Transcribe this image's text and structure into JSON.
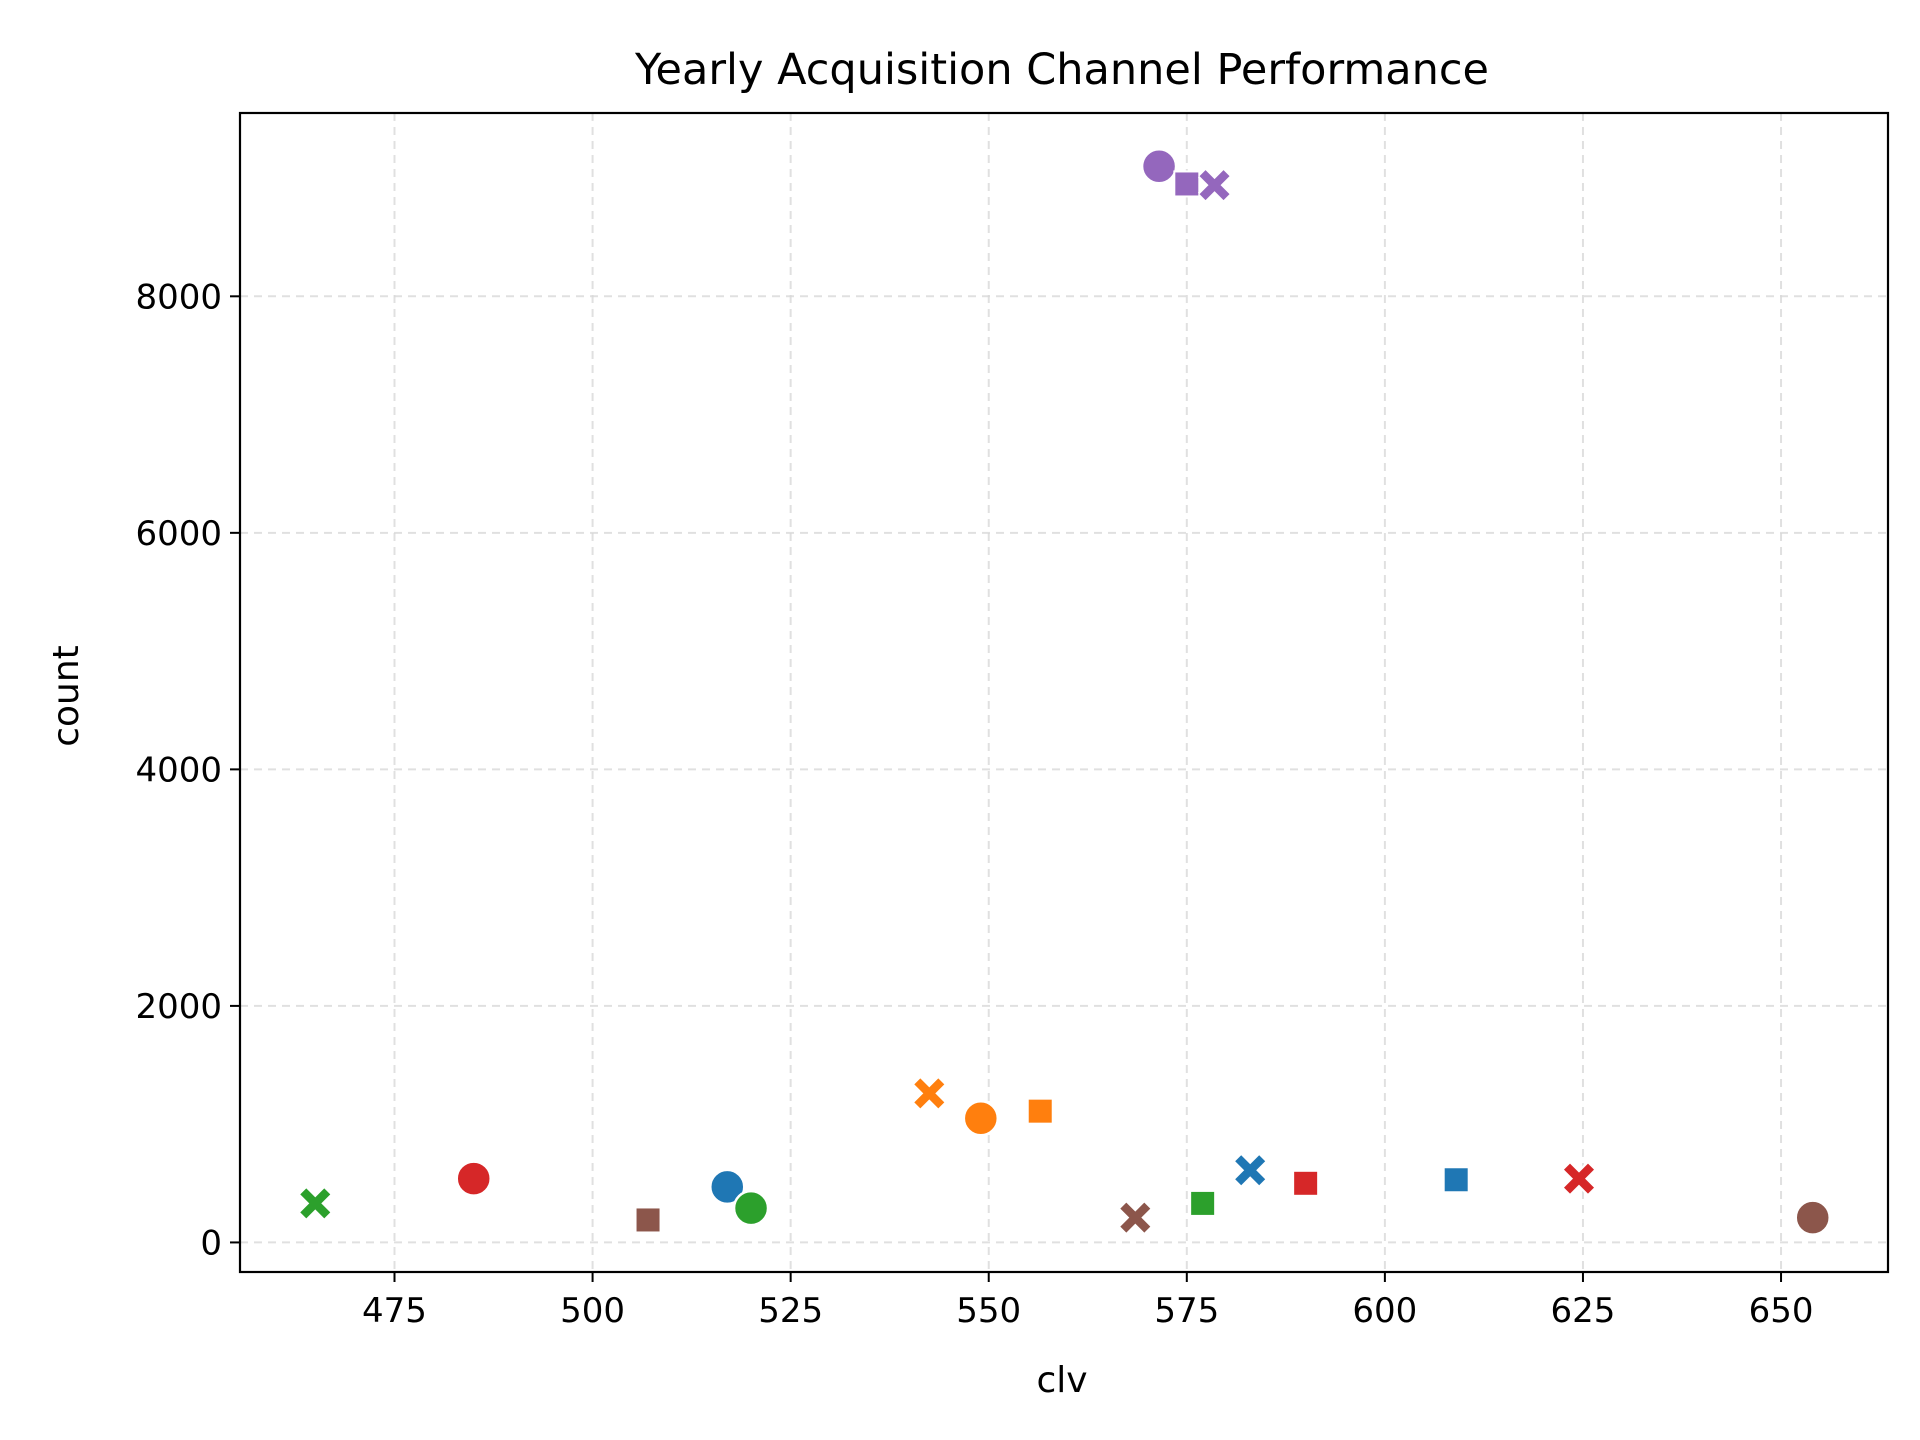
{
  "chart_data": {
    "type": "scatter",
    "title": "Yearly Acquisition Channel Performance",
    "xlabel": "clv",
    "ylabel": "count",
    "xlim": [
      455.5,
      663.5
    ],
    "ylim": [
      -250,
      9550
    ],
    "xticks": [
      475,
      500,
      525,
      550,
      575,
      600,
      625,
      650
    ],
    "yticks": [
      0,
      2000,
      4000,
      6000,
      8000
    ],
    "grid": true,
    "legend": "none",
    "points": [
      {
        "x": 517,
        "y": 470,
        "color": "#1f77b4",
        "marker": "circle"
      },
      {
        "x": 609,
        "y": 530,
        "color": "#1f77b4",
        "marker": "square"
      },
      {
        "x": 583,
        "y": 610,
        "color": "#1f77b4",
        "marker": "x"
      },
      {
        "x": 549,
        "y": 1050,
        "color": "#ff7f0e",
        "marker": "circle"
      },
      {
        "x": 556.5,
        "y": 1110,
        "color": "#ff7f0e",
        "marker": "square"
      },
      {
        "x": 542.5,
        "y": 1260,
        "color": "#ff7f0e",
        "marker": "x"
      },
      {
        "x": 520,
        "y": 290,
        "color": "#2ca02c",
        "marker": "circle"
      },
      {
        "x": 577,
        "y": 330,
        "color": "#2ca02c",
        "marker": "square"
      },
      {
        "x": 465,
        "y": 330,
        "color": "#2ca02c",
        "marker": "x"
      },
      {
        "x": 485,
        "y": 540,
        "color": "#d62728",
        "marker": "circle"
      },
      {
        "x": 590,
        "y": 500,
        "color": "#d62728",
        "marker": "square"
      },
      {
        "x": 624.5,
        "y": 540,
        "color": "#d62728",
        "marker": "x"
      },
      {
        "x": 571.5,
        "y": 9100,
        "color": "#9467bd",
        "marker": "circle"
      },
      {
        "x": 575,
        "y": 8950,
        "color": "#9467bd",
        "marker": "square"
      },
      {
        "x": 578.5,
        "y": 8940,
        "color": "#9467bd",
        "marker": "x"
      },
      {
        "x": 654,
        "y": 210,
        "color": "#8c564b",
        "marker": "circle"
      },
      {
        "x": 507,
        "y": 190,
        "color": "#8c564b",
        "marker": "square"
      },
      {
        "x": 568.5,
        "y": 210,
        "color": "#8c564b",
        "marker": "x"
      }
    ]
  }
}
